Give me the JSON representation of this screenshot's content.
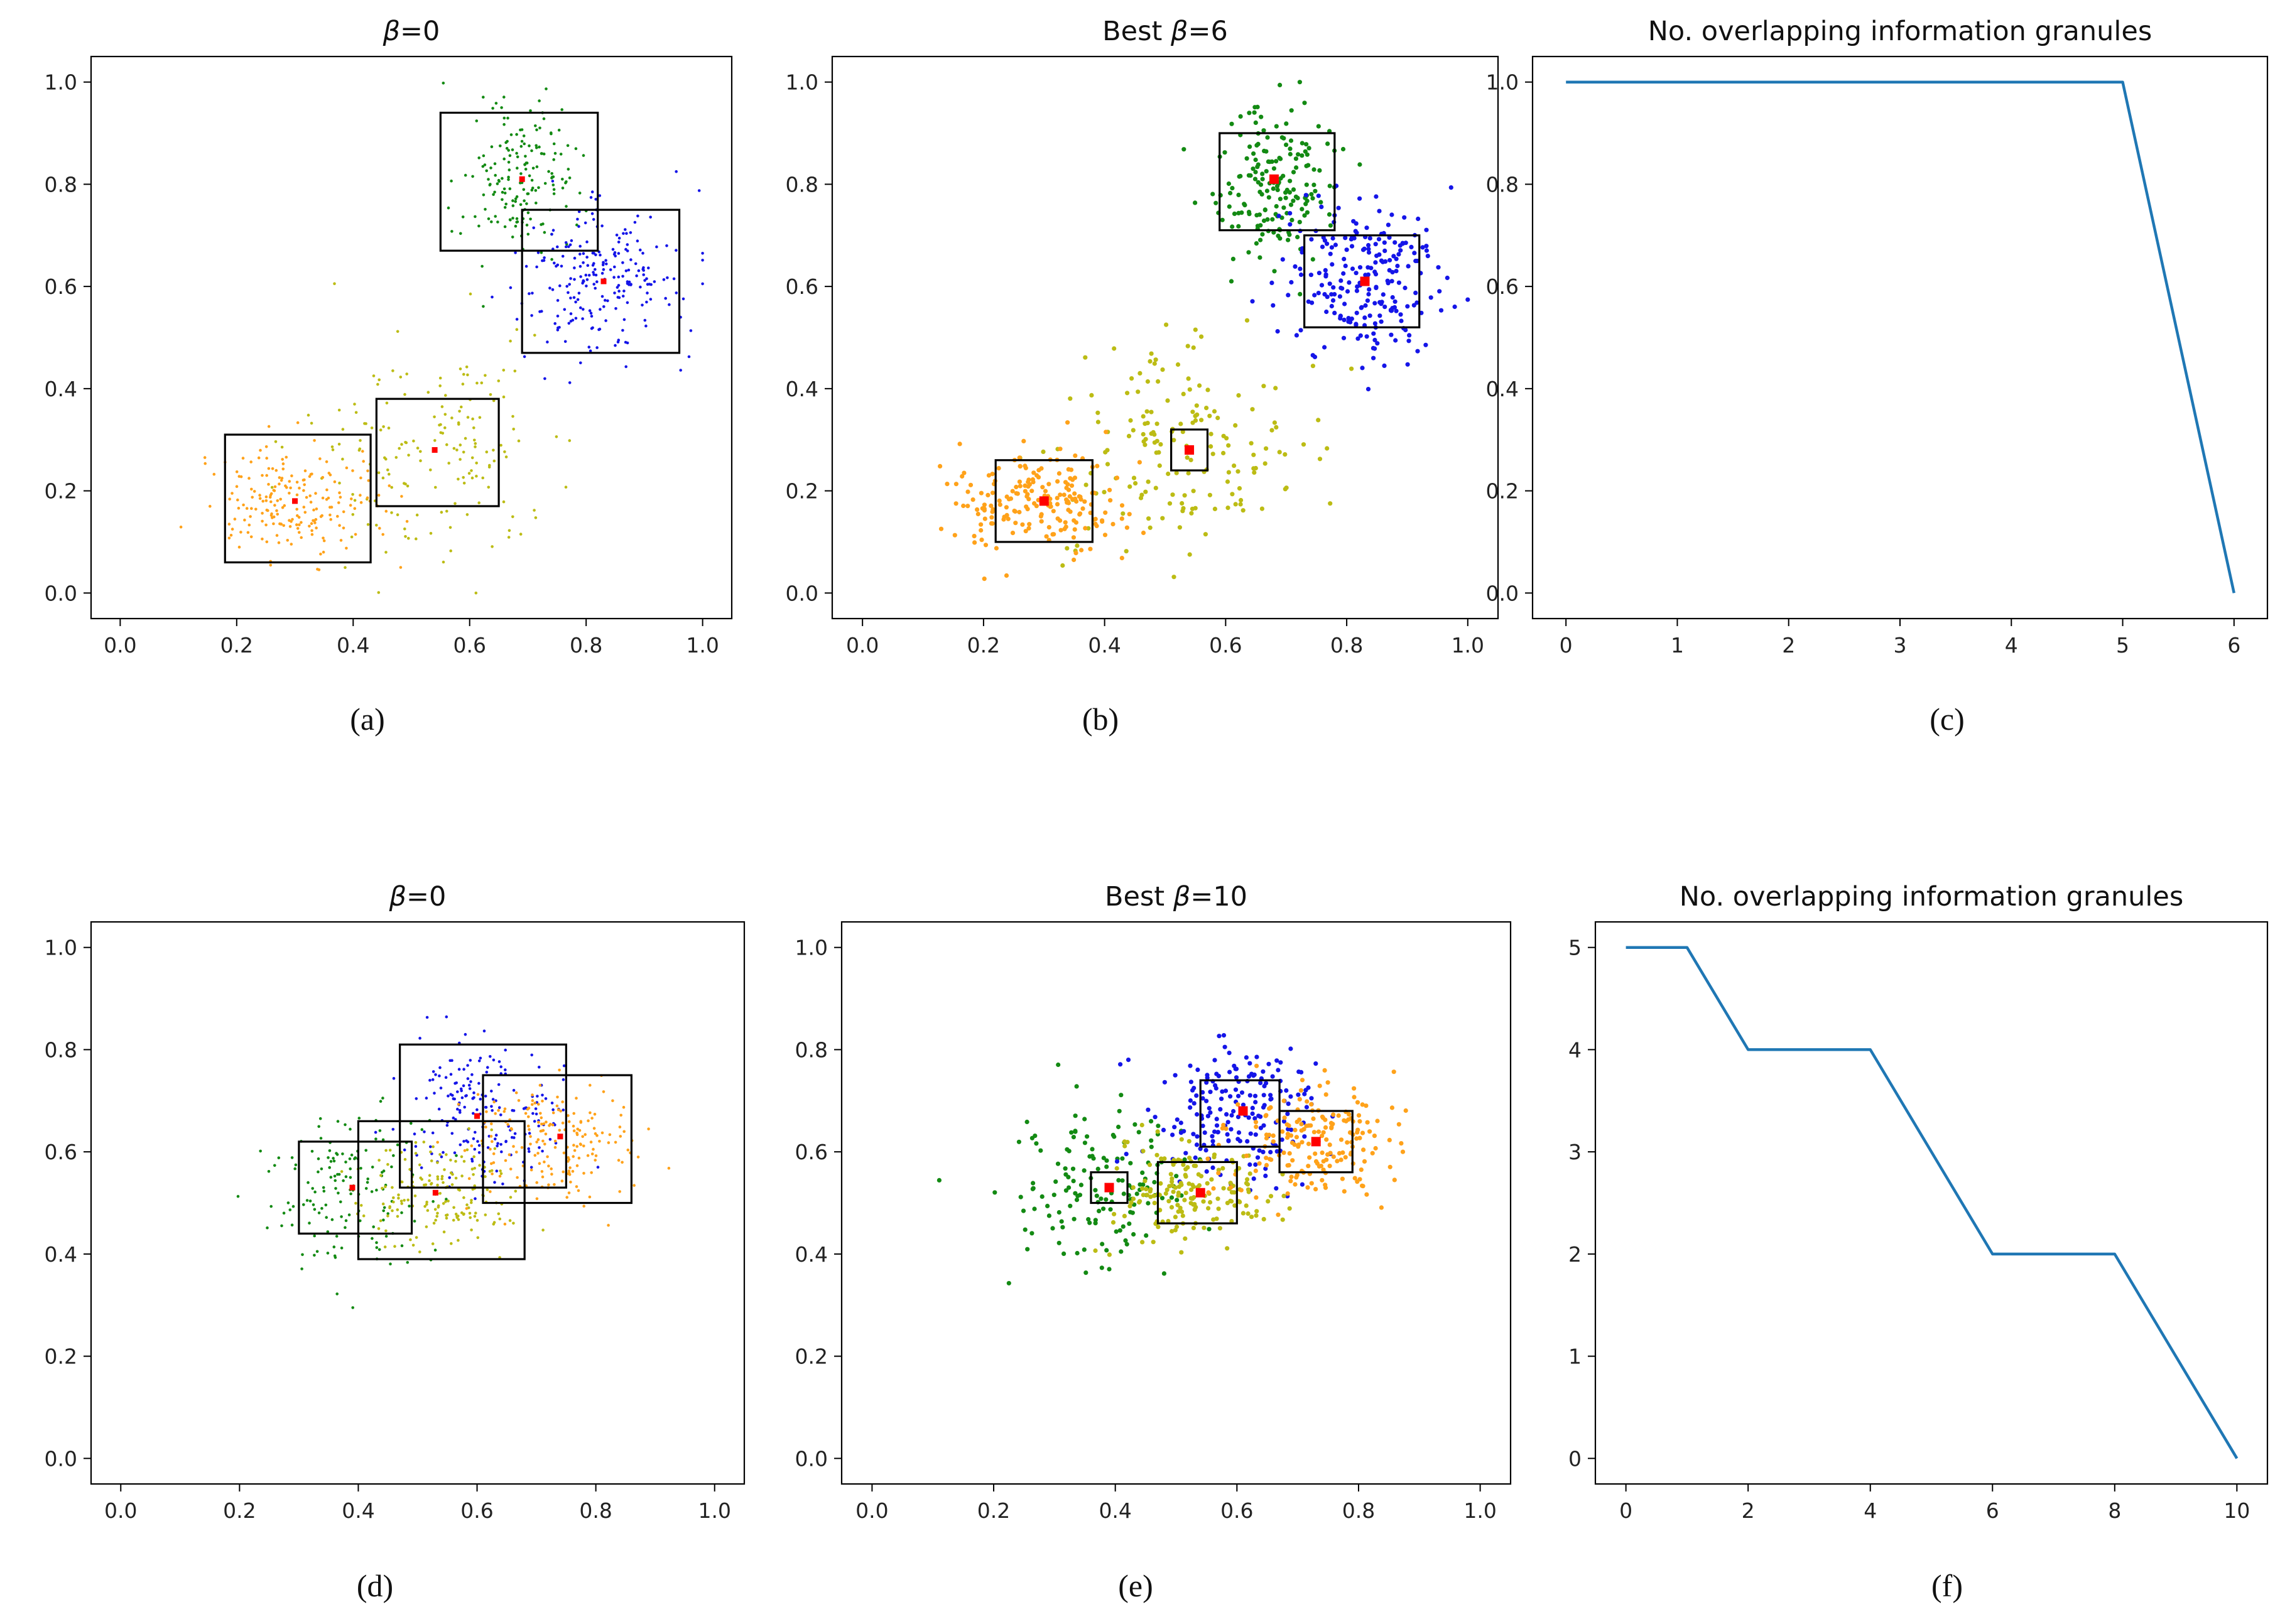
{
  "colors": {
    "green": "#138a13",
    "blue": "#1515e8",
    "yellow": "#bcbc14",
    "orange": "#ffa21a",
    "center": "#ff0000",
    "line": "#1f77b4",
    "box": "#000000"
  },
  "chart_data": [
    {
      "id": "a",
      "type": "scatter",
      "caption": "(a)",
      "title_prefix": "β",
      "title_suffix": "=0",
      "xlim": [
        -0.05,
        1.05
      ],
      "ylim": [
        -0.05,
        1.05
      ],
      "xticks": [
        "0.0",
        "0.2",
        "0.4",
        "0.6",
        "0.8",
        "1.0"
      ],
      "yticks": [
        "0.0",
        "0.2",
        "0.4",
        "0.6",
        "0.8",
        "1.0"
      ],
      "point_size": "small",
      "clusters": [
        {
          "name": "green",
          "cx": 0.68,
          "cy": 0.8,
          "sx": 0.045,
          "sy": 0.075,
          "n": 180
        },
        {
          "name": "blue",
          "cx": 0.83,
          "cy": 0.62,
          "sx": 0.07,
          "sy": 0.08,
          "n": 230
        },
        {
          "name": "yellow",
          "cx": 0.53,
          "cy": 0.28,
          "sx": 0.11,
          "sy": 0.1,
          "n": 170
        },
        {
          "name": "orange",
          "cx": 0.29,
          "cy": 0.18,
          "sx": 0.075,
          "sy": 0.05,
          "n": 200
        }
      ],
      "boxes": [
        {
          "x0": 0.55,
          "x1": 0.82,
          "y0": 0.67,
          "y1": 0.94
        },
        {
          "x0": 0.69,
          "x1": 0.96,
          "y0": 0.47,
          "y1": 0.75
        },
        {
          "x0": 0.44,
          "x1": 0.65,
          "y0": 0.17,
          "y1": 0.38
        },
        {
          "x0": 0.18,
          "x1": 0.43,
          "y0": 0.06,
          "y1": 0.31
        }
      ],
      "centers": [
        [
          0.69,
          0.81
        ],
        [
          0.83,
          0.61
        ],
        [
          0.54,
          0.28
        ],
        [
          0.3,
          0.18
        ]
      ]
    },
    {
      "id": "b",
      "type": "scatter",
      "caption": "(b)",
      "title_prefix": "Best β",
      "title_suffix": "=6",
      "xlim": [
        -0.05,
        1.05
      ],
      "ylim": [
        -0.05,
        1.05
      ],
      "xticks": [
        "0.0",
        "0.2",
        "0.4",
        "0.6",
        "0.8",
        "1.0"
      ],
      "yticks": [
        "0.0",
        "0.2",
        "0.4",
        "0.6",
        "0.8",
        "1.0"
      ],
      "point_size": "large",
      "clusters": [
        {
          "name": "green",
          "cx": 0.68,
          "cy": 0.8,
          "sx": 0.045,
          "sy": 0.075,
          "n": 180
        },
        {
          "name": "blue",
          "cx": 0.83,
          "cy": 0.62,
          "sx": 0.07,
          "sy": 0.08,
          "n": 230
        },
        {
          "name": "yellow",
          "cx": 0.53,
          "cy": 0.28,
          "sx": 0.11,
          "sy": 0.1,
          "n": 170
        },
        {
          "name": "orange",
          "cx": 0.29,
          "cy": 0.18,
          "sx": 0.075,
          "sy": 0.05,
          "n": 200
        }
      ],
      "boxes": [
        {
          "x0": 0.59,
          "x1": 0.78,
          "y0": 0.71,
          "y1": 0.9
        },
        {
          "x0": 0.73,
          "x1": 0.92,
          "y0": 0.52,
          "y1": 0.7
        },
        {
          "x0": 0.51,
          "x1": 0.57,
          "y0": 0.24,
          "y1": 0.32
        },
        {
          "x0": 0.22,
          "x1": 0.38,
          "y0": 0.1,
          "y1": 0.26
        }
      ],
      "centers": [
        [
          0.68,
          0.81
        ],
        [
          0.83,
          0.61
        ],
        [
          0.54,
          0.28
        ],
        [
          0.3,
          0.18
        ]
      ]
    },
    {
      "id": "c",
      "type": "line",
      "caption": "(c)",
      "title": "No. overlapping information granules",
      "xlim": [
        -0.3,
        6.3
      ],
      "ylim": [
        -0.05,
        1.05
      ],
      "xticks": [
        "0",
        "1",
        "2",
        "3",
        "4",
        "5",
        "6"
      ],
      "yticks": [
        "0.0",
        "0.2",
        "0.4",
        "0.6",
        "0.8",
        "1.0"
      ],
      "x": [
        0,
        1,
        2,
        3,
        4,
        5,
        6
      ],
      "y": [
        1,
        1,
        1,
        1,
        1,
        1,
        0
      ]
    },
    {
      "id": "d",
      "type": "scatter",
      "caption": "(d)",
      "title_prefix": "β",
      "title_suffix": "=0",
      "xlim": [
        -0.05,
        1.05
      ],
      "ylim": [
        -0.05,
        1.05
      ],
      "xticks": [
        "0.0",
        "0.2",
        "0.4",
        "0.6",
        "0.8",
        "1.0"
      ],
      "yticks": [
        "0.0",
        "0.2",
        "0.4",
        "0.6",
        "0.8",
        "1.0"
      ],
      "point_size": "small",
      "clusters": [
        {
          "name": "green",
          "cx": 0.38,
          "cy": 0.53,
          "sx": 0.07,
          "sy": 0.08,
          "n": 150
        },
        {
          "name": "blue",
          "cx": 0.6,
          "cy": 0.67,
          "sx": 0.07,
          "sy": 0.07,
          "n": 190
        },
        {
          "name": "yellow",
          "cx": 0.53,
          "cy": 0.52,
          "sx": 0.065,
          "sy": 0.05,
          "n": 170
        },
        {
          "name": "orange",
          "cx": 0.73,
          "cy": 0.62,
          "sx": 0.07,
          "sy": 0.06,
          "n": 190
        }
      ],
      "boxes": [
        {
          "x0": 0.3,
          "x1": 0.49,
          "y0": 0.44,
          "y1": 0.62
        },
        {
          "x0": 0.47,
          "x1": 0.75,
          "y0": 0.53,
          "y1": 0.81
        },
        {
          "x0": 0.4,
          "x1": 0.68,
          "y0": 0.39,
          "y1": 0.66
        },
        {
          "x0": 0.61,
          "x1": 0.86,
          "y0": 0.5,
          "y1": 0.75
        }
      ],
      "centers": [
        [
          0.39,
          0.53
        ],
        [
          0.6,
          0.67
        ],
        [
          0.53,
          0.52
        ],
        [
          0.74,
          0.63
        ]
      ]
    },
    {
      "id": "e",
      "type": "scatter",
      "caption": "(e)",
      "title_prefix": "Best β",
      "title_suffix": "=10",
      "xlim": [
        -0.05,
        1.05
      ],
      "ylim": [
        -0.05,
        1.05
      ],
      "xticks": [
        "0.0",
        "0.2",
        "0.4",
        "0.6",
        "0.8",
        "1.0"
      ],
      "yticks": [
        "0.0",
        "0.2",
        "0.4",
        "0.6",
        "0.8",
        "1.0"
      ],
      "point_size": "large",
      "clusters": [
        {
          "name": "green",
          "cx": 0.38,
          "cy": 0.53,
          "sx": 0.07,
          "sy": 0.08,
          "n": 150
        },
        {
          "name": "blue",
          "cx": 0.6,
          "cy": 0.67,
          "sx": 0.07,
          "sy": 0.07,
          "n": 190
        },
        {
          "name": "yellow",
          "cx": 0.53,
          "cy": 0.52,
          "sx": 0.065,
          "sy": 0.05,
          "n": 170
        },
        {
          "name": "orange",
          "cx": 0.73,
          "cy": 0.62,
          "sx": 0.07,
          "sy": 0.06,
          "n": 190
        }
      ],
      "boxes": [
        {
          "x0": 0.36,
          "x1": 0.42,
          "y0": 0.5,
          "y1": 0.56
        },
        {
          "x0": 0.54,
          "x1": 0.67,
          "y0": 0.61,
          "y1": 0.74
        },
        {
          "x0": 0.47,
          "x1": 0.6,
          "y0": 0.46,
          "y1": 0.58
        },
        {
          "x0": 0.67,
          "x1": 0.79,
          "y0": 0.56,
          "y1": 0.68
        }
      ],
      "centers": [
        [
          0.39,
          0.53
        ],
        [
          0.61,
          0.68
        ],
        [
          0.54,
          0.52
        ],
        [
          0.73,
          0.62
        ]
      ]
    },
    {
      "id": "f",
      "type": "line",
      "caption": "(f)",
      "title": "No. overlapping information granules",
      "xlim": [
        -0.5,
        10.5
      ],
      "ylim": [
        -0.25,
        5.25
      ],
      "xticks": [
        "0",
        "2",
        "4",
        "6",
        "8",
        "10"
      ],
      "yticks": [
        "0",
        "1",
        "2",
        "3",
        "4",
        "5"
      ],
      "x": [
        0,
        1,
        2,
        3,
        4,
        5,
        6,
        7,
        8,
        9,
        10
      ],
      "y": [
        5,
        5,
        4,
        4,
        4,
        3,
        2,
        2,
        2,
        1,
        0
      ]
    }
  ]
}
